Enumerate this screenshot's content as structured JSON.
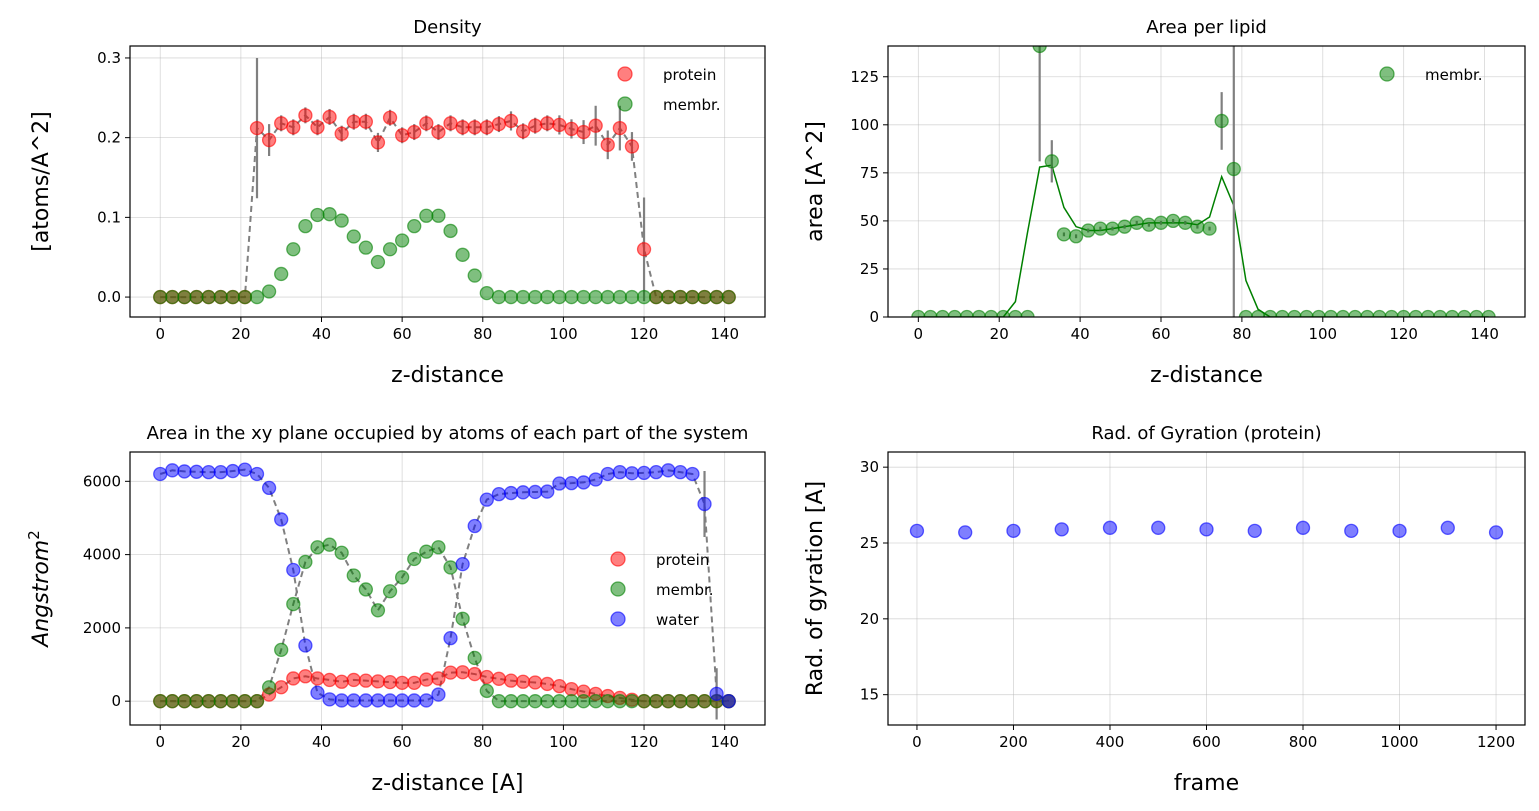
{
  "colors": {
    "protein": "#ff0000",
    "membrane": "#008000",
    "water": "#0000ff",
    "errorbar": "#808080",
    "fit": "#008000"
  },
  "chart_data": [
    {
      "type": "scatter",
      "title": "Density",
      "xlabel": "z-distance",
      "ylabel": "[atoms/A^2]",
      "xlim": [
        -7.5,
        150
      ],
      "ylim": [
        -0.025,
        0.315
      ],
      "xticks": [
        "0",
        "20",
        "40",
        "60",
        "80",
        "100",
        "120",
        "140"
      ],
      "yticks": [
        "0.0",
        "0.1",
        "0.2",
        "0.3"
      ],
      "grid": true,
      "legend": "top-right",
      "x": [
        0,
        3,
        6,
        9,
        12,
        15,
        18,
        21,
        24,
        27,
        30,
        33,
        36,
        39,
        42,
        45,
        48,
        51,
        54,
        57,
        60,
        63,
        66,
        69,
        72,
        75,
        78,
        81,
        84,
        87,
        90,
        93,
        96,
        99,
        102,
        105,
        108,
        111,
        114,
        117,
        120,
        123,
        126,
        129,
        132,
        135,
        138,
        141
      ],
      "series": [
        {
          "name": "protein",
          "color": "#ff0000",
          "values": [
            0,
            0,
            0,
            0,
            0,
            0,
            0,
            0,
            0.212,
            0.197,
            0.218,
            0.213,
            0.228,
            0.213,
            0.226,
            0.205,
            0.22,
            0.22,
            0.194,
            0.225,
            0.203,
            0.207,
            0.218,
            0.207,
            0.218,
            0.213,
            0.213,
            0.213,
            0.217,
            0.221,
            0.208,
            0.215,
            0.218,
            0.216,
            0.211,
            0.207,
            0.215,
            0.191,
            0.212,
            0.189,
            0.06,
            0,
            0,
            0,
            0,
            0,
            0,
            0
          ],
          "yerr": [
            0,
            0,
            0,
            0,
            0,
            0,
            0,
            0,
            0.088,
            0.02,
            0.01,
            0.01,
            0.01,
            0.01,
            0.01,
            0.01,
            0.01,
            0.01,
            0.012,
            0.01,
            0.01,
            0.01,
            0.01,
            0.01,
            0.01,
            0.01,
            0.01,
            0.01,
            0.01,
            0.012,
            0.01,
            0.01,
            0.01,
            0.012,
            0.012,
            0.015,
            0.025,
            0.018,
            0.028,
            0.018,
            0.065,
            0,
            0,
            0,
            0,
            0,
            0,
            0
          ]
        },
        {
          "name": "membr.",
          "color": "#008000",
          "values": [
            0,
            0,
            0,
            0,
            0,
            0,
            0,
            0,
            0,
            0.007,
            0.029,
            0.06,
            0.089,
            0.103,
            0.104,
            0.096,
            0.076,
            0.062,
            0.044,
            0.06,
            0.071,
            0.089,
            0.102,
            0.102,
            0.083,
            0.053,
            0.027,
            0.005,
            0,
            0,
            0,
            0,
            0,
            0,
            0,
            0,
            0,
            0,
            0,
            0,
            0,
            0,
            0,
            0,
            0,
            0,
            0,
            0
          ]
        }
      ]
    },
    {
      "type": "scatter",
      "title": "Area per lipid",
      "xlabel": "z-distance",
      "ylabel": "area [A^2]",
      "xlim": [
        -7.5,
        150
      ],
      "ylim": [
        0,
        141
      ],
      "xticks": [
        "0",
        "20",
        "40",
        "60",
        "80",
        "100",
        "120",
        "140"
      ],
      "yticks": [
        "0",
        "25",
        "50",
        "75",
        "100",
        "125"
      ],
      "grid": true,
      "legend": "top-right",
      "x": [
        0,
        3,
        6,
        9,
        12,
        15,
        18,
        21,
        24,
        27,
        30,
        33,
        36,
        39,
        42,
        45,
        48,
        51,
        54,
        57,
        60,
        63,
        66,
        69,
        72,
        75,
        78,
        81,
        84,
        87,
        90,
        93,
        96,
        99,
        102,
        105,
        108,
        111,
        114,
        117,
        120,
        123,
        126,
        129,
        132,
        135,
        138,
        141
      ],
      "series": [
        {
          "name": "membr.",
          "color": "#008000",
          "values": [
            0,
            0,
            0,
            0,
            0,
            0,
            0,
            0,
            0,
            0,
            141,
            81,
            43,
            42,
            45,
            46,
            46,
            47,
            49,
            48,
            49,
            50,
            49,
            47,
            46,
            102,
            77,
            0,
            0,
            0,
            0,
            0,
            0,
            0,
            0,
            0,
            0,
            0,
            0,
            0,
            0,
            0,
            0,
            0,
            0,
            0,
            0,
            0
          ],
          "yerr": [
            0,
            0,
            0,
            0,
            0,
            0,
            0,
            0,
            0,
            0,
            60,
            11,
            1,
            1,
            1,
            1,
            1,
            1,
            1,
            1,
            1,
            1,
            1,
            1,
            1,
            15,
            300,
            0,
            0,
            0,
            0,
            0,
            0,
            0,
            0,
            0,
            0,
            0,
            0,
            0,
            0,
            0,
            0,
            0,
            0,
            0,
            0,
            0
          ]
        }
      ],
      "smoothed_line": {
        "x": [
          0,
          3,
          6,
          9,
          12,
          15,
          18,
          21,
          24,
          27,
          30,
          33,
          36,
          39,
          42,
          45,
          48,
          51,
          54,
          57,
          60,
          63,
          66,
          69,
          72,
          75,
          78,
          81,
          84,
          87,
          90,
          93,
          96,
          99,
          102,
          105,
          108,
          111,
          114,
          117,
          120,
          123,
          126,
          129,
          132,
          135,
          138,
          141
        ],
        "values": [
          0,
          0,
          0,
          0,
          0,
          0,
          0,
          0,
          8,
          44,
          78,
          79,
          57,
          47,
          45,
          45,
          46,
          47,
          48,
          49,
          49,
          49,
          49,
          48,
          52,
          73,
          58,
          19,
          4,
          0,
          0,
          0,
          0,
          0,
          0,
          0,
          0,
          0,
          0,
          0,
          0,
          0,
          0,
          0,
          0,
          0,
          0,
          0
        ]
      }
    },
    {
      "type": "scatter",
      "title": "Area in the xy plane occupied by atoms of each part of the system",
      "xlabel": "z-distance [A]",
      "ylabel": "Angstrom",
      "ylabel_superscript": "2",
      "xlim": [
        -7.5,
        150
      ],
      "ylim": [
        -650,
        6800
      ],
      "xticks": [
        "0",
        "20",
        "40",
        "60",
        "80",
        "100",
        "120",
        "140"
      ],
      "yticks": [
        "0",
        "2000",
        "4000",
        "6000"
      ],
      "grid": true,
      "legend": "center-right",
      "x": [
        0,
        3,
        6,
        9,
        12,
        15,
        18,
        21,
        24,
        27,
        30,
        33,
        36,
        39,
        42,
        45,
        48,
        51,
        54,
        57,
        60,
        63,
        66,
        69,
        72,
        75,
        78,
        81,
        84,
        87,
        90,
        93,
        96,
        99,
        102,
        105,
        108,
        111,
        114,
        117,
        120,
        123,
        126,
        129,
        132,
        135,
        138,
        141
      ],
      "series": [
        {
          "name": "protein",
          "color": "#ff0000",
          "values": [
            0,
            0,
            0,
            0,
            0,
            0,
            0,
            0,
            0,
            180,
            380,
            620,
            680,
            620,
            580,
            530,
            580,
            560,
            540,
            520,
            500,
            500,
            590,
            620,
            780,
            790,
            740,
            660,
            610,
            560,
            530,
            510,
            470,
            410,
            330,
            260,
            200,
            140,
            90,
            40,
            0,
            0,
            0,
            0,
            0,
            0,
            0,
            0
          ]
        },
        {
          "name": "membr.",
          "color": "#008000",
          "values": [
            0,
            0,
            0,
            0,
            0,
            0,
            0,
            0,
            0,
            380,
            1400,
            2650,
            3800,
            4200,
            4270,
            4050,
            3430,
            3050,
            2480,
            3000,
            3380,
            3880,
            4080,
            4200,
            3650,
            2250,
            1180,
            280,
            0,
            0,
            0,
            0,
            0,
            0,
            0,
            0,
            0,
            0,
            0,
            0,
            0,
            0,
            0,
            0,
            0,
            0,
            0,
            0
          ]
        },
        {
          "name": "water",
          "color": "#0000ff",
          "values": [
            6200,
            6300,
            6270,
            6260,
            6250,
            6250,
            6280,
            6320,
            6200,
            5820,
            4960,
            3580,
            1520,
            230,
            50,
            20,
            20,
            20,
            20,
            20,
            20,
            20,
            20,
            180,
            1720,
            3740,
            4780,
            5500,
            5650,
            5680,
            5700,
            5710,
            5720,
            5940,
            5950,
            5970,
            6050,
            6200,
            6250,
            6220,
            6230,
            6250,
            6300,
            6250,
            6200,
            5380,
            200,
            0
          ],
          "yerr": [
            0,
            0,
            0,
            0,
            0,
            0,
            0,
            0,
            0,
            0,
            0,
            0,
            0,
            0,
            0,
            0,
            0,
            0,
            0,
            0,
            0,
            0,
            0,
            0,
            0,
            0,
            0,
            0,
            0,
            0,
            0,
            0,
            0,
            0,
            0,
            0,
            0,
            0,
            0,
            0,
            0,
            0,
            0,
            0,
            0,
            900,
            700,
            0
          ]
        }
      ]
    },
    {
      "type": "scatter",
      "title": "Rad. of Gyration (protein)",
      "xlabel": "frame",
      "ylabel": "Rad. of gyration [A]",
      "xlim": [
        -60,
        1260
      ],
      "ylim": [
        13,
        31
      ],
      "xticks": [
        "0",
        "200",
        "400",
        "600",
        "800",
        "1000",
        "1200"
      ],
      "yticks": [
        "15",
        "20",
        "25",
        "30"
      ],
      "grid": true,
      "x": [
        0,
        100,
        200,
        300,
        400,
        500,
        600,
        700,
        800,
        900,
        1000,
        1100,
        1200
      ],
      "series": [
        {
          "name": "",
          "color": "#0000ff",
          "values": [
            25.8,
            25.7,
            25.8,
            25.9,
            26.0,
            26.0,
            25.9,
            25.8,
            26.0,
            25.8,
            25.8,
            26.0,
            25.7
          ]
        }
      ]
    }
  ]
}
